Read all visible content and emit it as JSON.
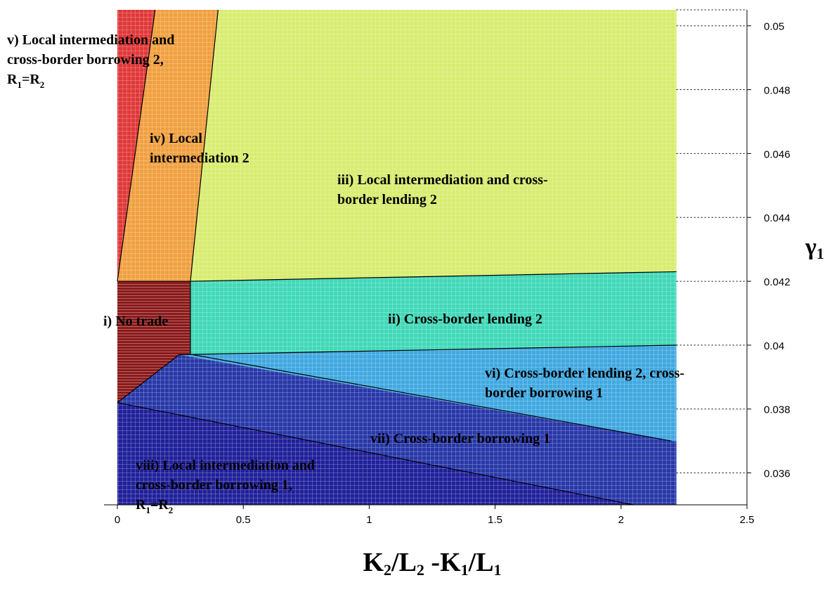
{
  "chart_data": {
    "type": "area",
    "title": "",
    "xlabel": "K2/L2 -K1/L1",
    "ylabel": "γ1",
    "xlim": [
      0,
      2.5
    ],
    "ylim": [
      0.035,
      0.0505
    ],
    "x_ticks": [
      0,
      0.5,
      1,
      1.5,
      2,
      2.5
    ],
    "x_tick_labels": [
      "0",
      "0.5",
      "1",
      "1.5",
      "2",
      "2.5"
    ],
    "y_ticks": [
      0.036,
      0.038,
      0.04,
      0.042,
      0.044,
      0.046,
      0.048,
      0.05
    ],
    "y_tick_labels": [
      "0.036",
      "0.038",
      "0.04",
      "0.042",
      "0.044",
      "0.046",
      "0.048",
      "0.05"
    ],
    "y_axis_position": "right",
    "grid": "horizontal dotted",
    "regions": [
      {
        "id": "i",
        "label": "i) No trade",
        "color": "#8b1a1a",
        "polygon": [
          [
            0,
            0.0382
          ],
          [
            0,
            0.042
          ],
          [
            0.29,
            0.042
          ],
          [
            0.29,
            0.0397
          ],
          [
            0.245,
            0.0397
          ]
        ]
      },
      {
        "id": "ii",
        "label": "ii) Cross-border lending 2",
        "color": "#40d8b8",
        "polygon": [
          [
            0.29,
            0.0397
          ],
          [
            0.29,
            0.042
          ],
          [
            2.22,
            0.0423
          ],
          [
            2.22,
            0.04
          ]
        ]
      },
      {
        "id": "iii",
        "label_lines": [
          "iii) Local intermediation and cross-",
          "border lending 2"
        ],
        "color": "#d8ec70",
        "polygon": [
          [
            0.29,
            0.042
          ],
          [
            0.4,
            0.0505
          ],
          [
            2.22,
            0.0505
          ],
          [
            2.22,
            0.0423
          ]
        ]
      },
      {
        "id": "iv",
        "label_lines": [
          "iv) Local",
          "intermediation 2"
        ],
        "color": "#f0a040",
        "polygon": [
          [
            0,
            0.042
          ],
          [
            0.29,
            0.042
          ],
          [
            0.4,
            0.0505
          ],
          [
            0.15,
            0.0505
          ]
        ]
      },
      {
        "id": "v",
        "label_lines": [
          "v) Local intermediation and",
          "cross-border borrowing 2,",
          "R1=R2"
        ],
        "color": "#e03838",
        "polygon": [
          [
            0,
            0.042
          ],
          [
            0.15,
            0.0505
          ],
          [
            0,
            0.0505
          ]
        ]
      },
      {
        "id": "vi",
        "label_lines": [
          "vi) Cross-border lending 2, cross-",
          "border borrowing 1"
        ],
        "color": "#40a8e0",
        "polygon": [
          [
            0.245,
            0.0397
          ],
          [
            2.22,
            0.04
          ],
          [
            2.22,
            0.037
          ],
          [
            2.2,
            0.037
          ]
        ]
      },
      {
        "id": "vii",
        "label": "vii) Cross-border borrowing 1",
        "color": "#2838a8",
        "polygon": [
          [
            0,
            0.0382
          ],
          [
            0.245,
            0.0397
          ],
          [
            2.2,
            0.037
          ],
          [
            2.22,
            0.037
          ],
          [
            2.22,
            0.035
          ],
          [
            2.05,
            0.035
          ]
        ]
      },
      {
        "id": "viii",
        "label_lines": [
          "viii) Local intermediation and",
          "cross-border borrowing 1,",
          "R1=R2"
        ],
        "color": "#20209a",
        "polygon": [
          [
            0,
            0.035
          ],
          [
            0,
            0.0382
          ],
          [
            2.05,
            0.035
          ]
        ]
      }
    ],
    "boundaries": [
      [
        [
          0,
          0.0382
        ],
        [
          0.245,
          0.0397
        ]
      ],
      [
        [
          0.245,
          0.0397
        ],
        [
          2.22,
          0.04
        ]
      ],
      [
        [
          0.29,
          0.0397
        ],
        [
          0.29,
          0.042
        ]
      ],
      [
        [
          0,
          0.042
        ],
        [
          0.29,
          0.042
        ]
      ],
      [
        [
          0.29,
          0.042
        ],
        [
          2.22,
          0.0423
        ]
      ],
      [
        [
          0.29,
          0.042
        ],
        [
          0.4,
          0.0505
        ]
      ],
      [
        [
          0,
          0.042
        ],
        [
          0.15,
          0.0505
        ]
      ],
      [
        [
          0.3,
          0.0397
        ],
        [
          2.2,
          0.037
        ]
      ],
      [
        [
          0,
          0.0382
        ],
        [
          2.05,
          0.035
        ]
      ]
    ]
  }
}
